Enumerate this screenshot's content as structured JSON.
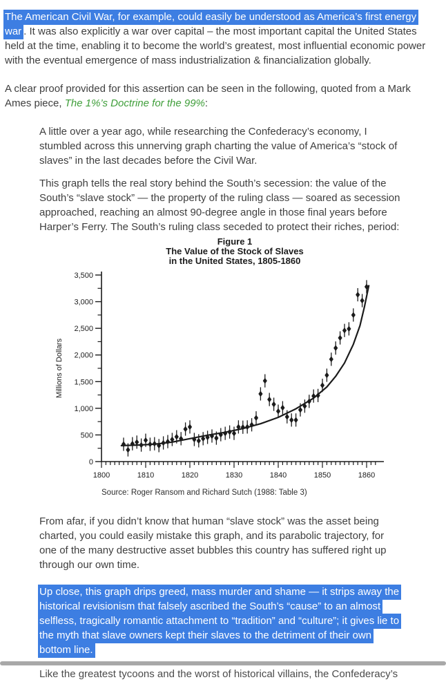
{
  "colors": {
    "selection_highlight": "#3d7ee2",
    "selection_text": "#ffffff",
    "link_green": "#3f9e3a",
    "body_text": "#3e3e3e",
    "chart_ink": "#1b1b1b",
    "scrollbar_gray": "#a8a8a8"
  },
  "intro": {
    "selected": "The American Civil War, for example, could easily be understood as America’s first energy war",
    "rest": ". It was also explicitly a war over capital – the most important capital the United States held at the time, enabling it to become the world’s greatest, most influential economic power with the eventual emergence of mass industrialization & financialization globally."
  },
  "attribution": {
    "before_link": "A clear proof provided for this assertion can be seen in the following, quoted from a Mark Ames piece, ",
    "link_label": "The 1%’s Doctrine for the 99%",
    "after_link": ":"
  },
  "quote": {
    "para1": "A little over a year ago, while researching the Confederacy’s economy, I stumbled across this unnerving graph charting the value of America’s “stock of slaves” in the last decades before the Civil War.",
    "para2": "This graph tells the real story behind the South’s secession: the value of the South’s “slave stock” — the property of the ruling class — soared as secession approached, reaching an almost 90-degree angle in those final years before Harper’s Ferry. The South’s ruling class seceded to protect their riches, period:",
    "para3": "From afar, if you didn’t know that human “slave stock” was the asset being charted, you could easily mistake this graph, and its parabolic trajectory, for one of the many destructive asset bubbles this country has suffered right up through our own time.",
    "para4_selected": "Up close, this graph drips greed, mass murder and shame — it strips away the historical revisionism that falsely ascribed the South’s “cause” to an almost selfless, tragically romantic attachment to “tradition” and “culture”; it gives lie to the myth that slave owners kept their slaves to the detriment of their own bottom line."
  },
  "clipped_line": "Like the greatest tycoons and the worst of historical villains, the Confederacy’s",
  "chart_data": {
    "type": "scatter",
    "title_lines": [
      "Figure 1",
      "The Value of the Stock of Slaves",
      "in the United States, 1805-1860"
    ],
    "ylabel": "Millions of Dollars",
    "xlabel": "",
    "source": "Source: Roger Ransom and Richard Sutch (1988: Table 3)",
    "legend": "none",
    "grid": false,
    "xlim": [
      1800,
      1862
    ],
    "ylim": [
      0,
      3500
    ],
    "x_ticks": [
      1800,
      1810,
      1820,
      1830,
      1840,
      1850,
      1860
    ],
    "y_ticks": [
      [
        "0",
        0
      ],
      [
        "500",
        500
      ],
      [
        "1,000",
        1000
      ],
      [
        "1,500",
        1500
      ],
      [
        "2,000",
        2000
      ],
      [
        "2,500",
        2500
      ],
      [
        "3,000",
        3000
      ],
      [
        "3,500",
        3500
      ]
    ],
    "marker": "diamond-with-error-bar",
    "error_bar_value": 70,
    "points": [
      [
        1805,
        325
      ],
      [
        1806,
        220
      ],
      [
        1807,
        335
      ],
      [
        1808,
        365
      ],
      [
        1809,
        310
      ],
      [
        1810,
        400
      ],
      [
        1811,
        325
      ],
      [
        1812,
        335
      ],
      [
        1813,
        300
      ],
      [
        1814,
        350
      ],
      [
        1815,
        375
      ],
      [
        1816,
        415
      ],
      [
        1817,
        465
      ],
      [
        1818,
        430
      ],
      [
        1819,
        610
      ],
      [
        1820,
        650
      ],
      [
        1821,
        415
      ],
      [
        1822,
        390
      ],
      [
        1823,
        430
      ],
      [
        1824,
        455
      ],
      [
        1825,
        480
      ],
      [
        1826,
        440
      ],
      [
        1827,
        505
      ],
      [
        1828,
        530
      ],
      [
        1829,
        555
      ],
      [
        1830,
        530
      ],
      [
        1831,
        650
      ],
      [
        1832,
        645
      ],
      [
        1833,
        650
      ],
      [
        1834,
        690
      ],
      [
        1835,
        820
      ],
      [
        1836,
        1270
      ],
      [
        1837,
        1515
      ],
      [
        1838,
        1165
      ],
      [
        1839,
        1075
      ],
      [
        1840,
        945
      ],
      [
        1841,
        1010
      ],
      [
        1842,
        840
      ],
      [
        1843,
        780
      ],
      [
        1844,
        780
      ],
      [
        1845,
        970
      ],
      [
        1846,
        1040
      ],
      [
        1847,
        1130
      ],
      [
        1848,
        1230
      ],
      [
        1849,
        1240
      ],
      [
        1850,
        1430
      ],
      [
        1851,
        1620
      ],
      [
        1852,
        1920
      ],
      [
        1853,
        2130
      ],
      [
        1854,
        2320
      ],
      [
        1855,
        2460
      ],
      [
        1856,
        2490
      ],
      [
        1857,
        2750
      ],
      [
        1858,
        3130
      ],
      [
        1859,
        3020
      ],
      [
        1860,
        3280
      ]
    ],
    "trend": [
      [
        1804.5,
        300
      ],
      [
        1808,
        310
      ],
      [
        1812,
        325
      ],
      [
        1816,
        365
      ],
      [
        1820,
        430
      ],
      [
        1824,
        495
      ],
      [
        1828,
        550
      ],
      [
        1832,
        620
      ],
      [
        1836,
        710
      ],
      [
        1840,
        830
      ],
      [
        1844,
        990
      ],
      [
        1848,
        1190
      ],
      [
        1851,
        1400
      ],
      [
        1853,
        1600
      ],
      [
        1855,
        1850
      ],
      [
        1857,
        2200
      ],
      [
        1858.5,
        2550
      ],
      [
        1859.5,
        2900
      ],
      [
        1860.5,
        3300
      ]
    ]
  }
}
